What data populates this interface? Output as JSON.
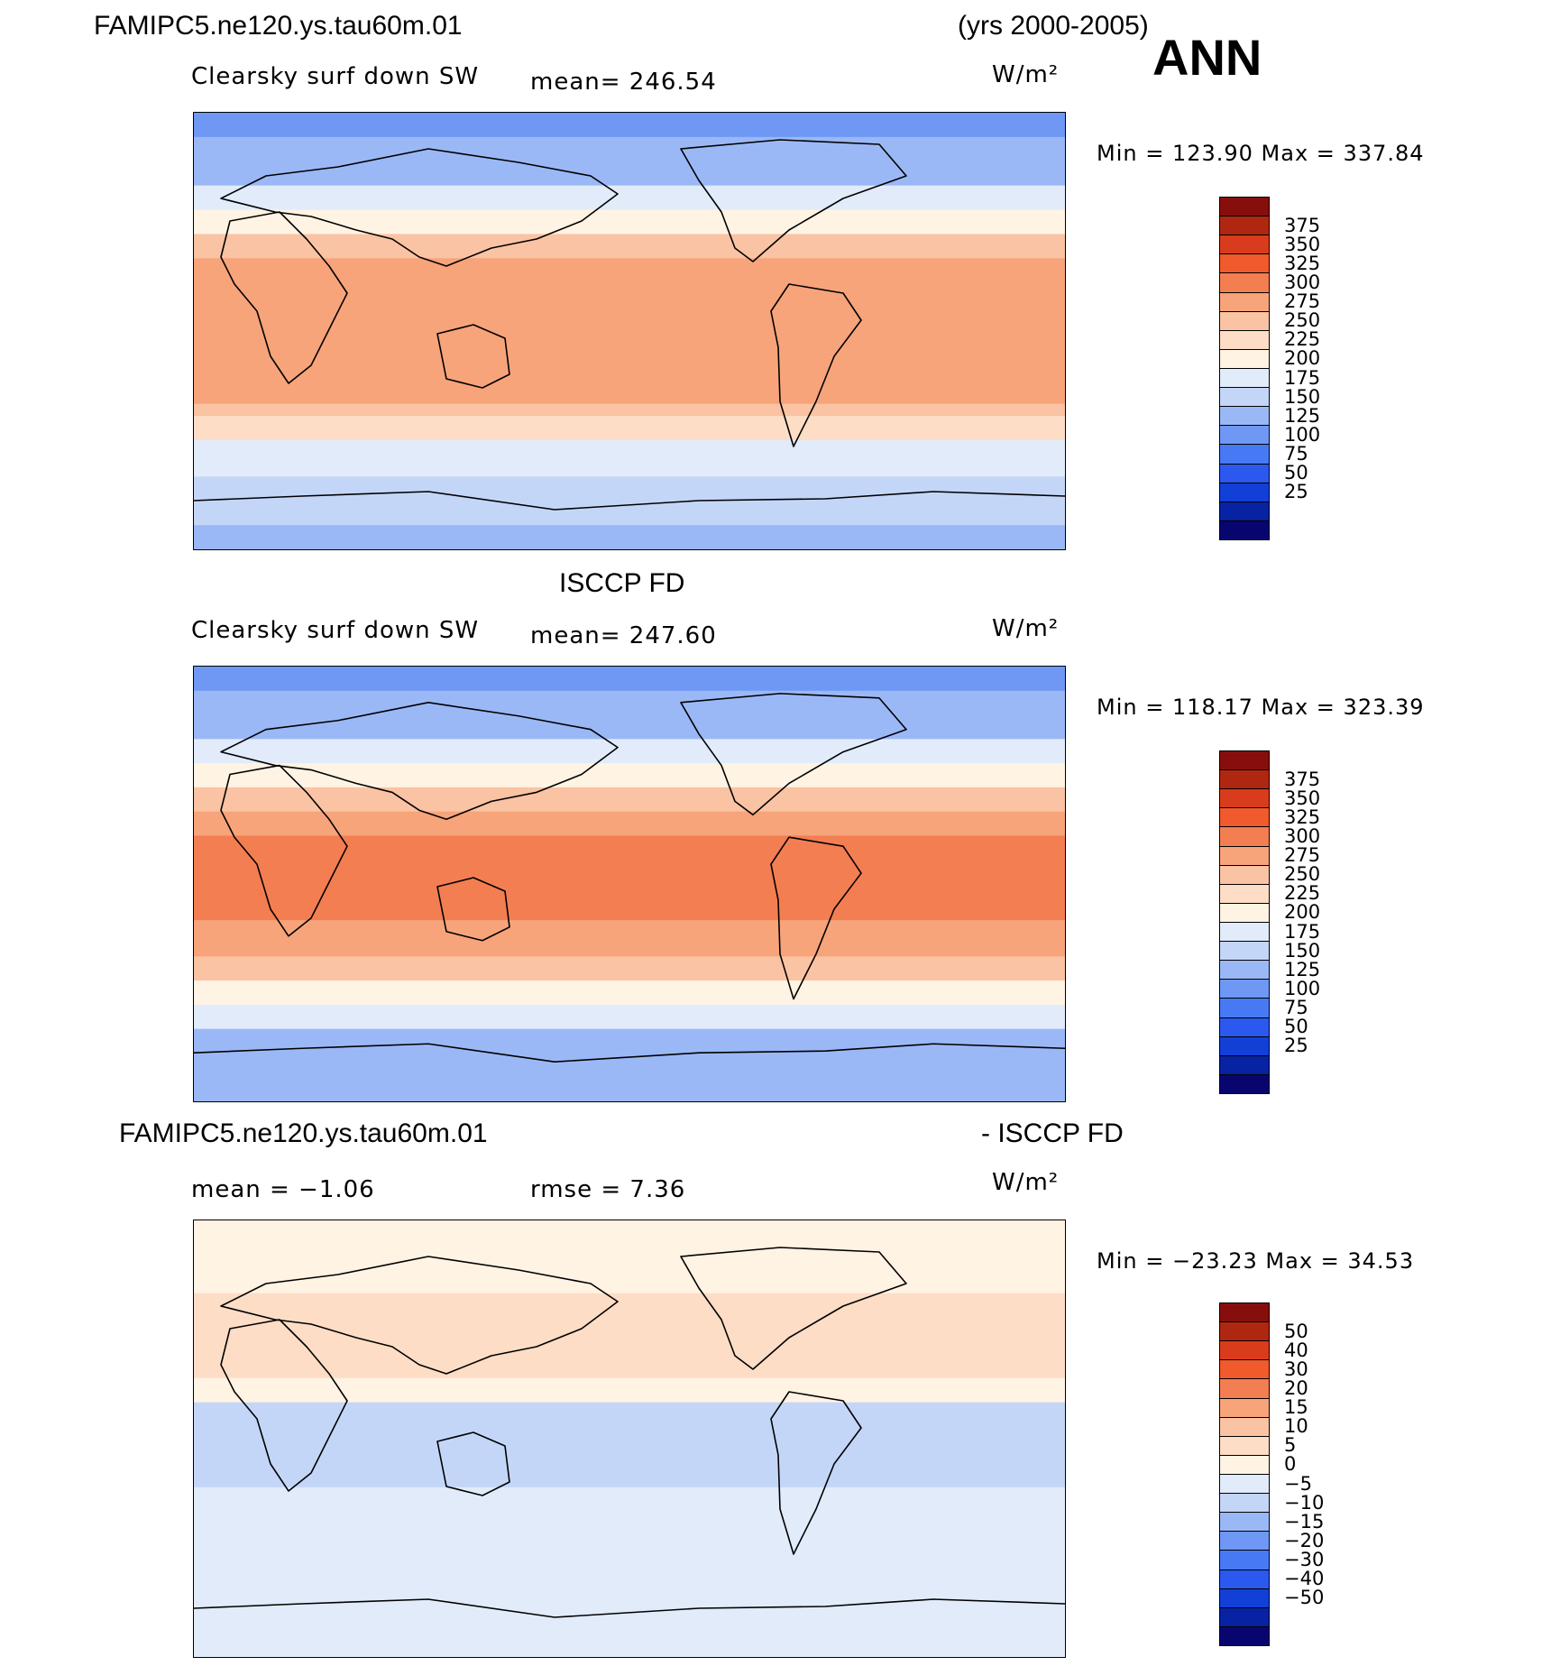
{
  "header": {
    "case_name": "FAMIPC5.ne120.ys.tau60m.01",
    "years": "(yrs 2000-2005)",
    "season": "ANN"
  },
  "panels": [
    {
      "id": "model",
      "title": "",
      "variable": "Clearsky surf down SW",
      "stat1": "mean=  246.54",
      "stat2": "",
      "units": "W/m²",
      "minmax": "Min  =  123.90  Max  =  337.84"
    },
    {
      "id": "obs",
      "title": "ISCCP FD",
      "variable": "Clearsky surf down SW",
      "stat1": "mean=  247.60",
      "stat2": "",
      "units": "W/m²",
      "minmax": "Min  =  118.17  Max  =  323.39"
    },
    {
      "id": "diff",
      "title_left": "FAMIPC5.ne120.ys.tau60m.01",
      "title_right": "- ISCCP FD",
      "variable": "mean  =   −1.06",
      "stat1": "rmse  =     7.36",
      "stat2": "",
      "units": "W/m²",
      "minmax": "Min  =  −23.23  Max  =    34.53"
    }
  ],
  "colorbars": {
    "abs": {
      "colors": [
        "#08066e",
        "#0722a3",
        "#1240d6",
        "#2b58ee",
        "#4779f4",
        "#6f98f5",
        "#9bb8f6",
        "#c4d6f8",
        "#e1ebfa",
        "#fff3e3",
        "#fdddc6",
        "#fac3a3",
        "#f7a47b",
        "#f37e51",
        "#f05a2c",
        "#d93c1c",
        "#b02711",
        "#860f0d"
      ],
      "labels": [
        "25",
        "50",
        "75",
        "100",
        "125",
        "150",
        "175",
        "200",
        "225",
        "250",
        "275",
        "300",
        "325",
        "350",
        "375"
      ]
    },
    "diff": {
      "colors": [
        "#08066e",
        "#0722a3",
        "#1240d6",
        "#2b58ee",
        "#4779f4",
        "#6f98f5",
        "#9bb8f6",
        "#c4d6f8",
        "#e1ebfa",
        "#fff3e3",
        "#fdddc6",
        "#fac3a3",
        "#f7a47b",
        "#f37e51",
        "#f05a2c",
        "#d93c1c",
        "#b02711",
        "#860f0d"
      ],
      "labels": [
        "−50",
        "−40",
        "−30",
        "−20",
        "−15",
        "−10",
        "−5",
        "0",
        "5",
        "10",
        "15",
        "20",
        "30",
        "40",
        "50"
      ]
    }
  },
  "chart_data": [
    {
      "type": "heatmap",
      "title": "Clearsky surf down SW",
      "units": "W/m²",
      "mean": 246.54,
      "min": 123.9,
      "max": 337.84,
      "contour_levels": [
        25,
        50,
        75,
        100,
        125,
        150,
        175,
        200,
        225,
        250,
        275,
        300,
        325,
        350,
        375
      ],
      "zonal_bands": [
        {
          "lat": [
            80,
            90
          ],
          "value": 105
        },
        {
          "lat": [
            60,
            80
          ],
          "value": 140
        },
        {
          "lat": [
            50,
            60
          ],
          "value": 175
        },
        {
          "lat": [
            40,
            50
          ],
          "value": 215
        },
        {
          "lat": [
            30,
            40
          ],
          "value": 250
        },
        {
          "lat": [
            -30,
            30
          ],
          "value": 290
        },
        {
          "lat": [
            -35,
            -30
          ],
          "value": 260
        },
        {
          "lat": [
            -45,
            -35
          ],
          "value": 230
        },
        {
          "lat": [
            -60,
            -45
          ],
          "value": 185
        },
        {
          "lat": [
            -80,
            -60
          ],
          "value": 150
        },
        {
          "lat": [
            -90,
            -80
          ],
          "value": 130
        }
      ]
    },
    {
      "type": "heatmap",
      "title": "ISCCP FD Clearsky surf down SW",
      "units": "W/m²",
      "mean": 247.6,
      "min": 118.17,
      "max": 323.39,
      "contour_levels": [
        25,
        50,
        75,
        100,
        125,
        150,
        175,
        200,
        225,
        250,
        275,
        300,
        325,
        350,
        375
      ],
      "zonal_bands": [
        {
          "lat": [
            80,
            90
          ],
          "value": 110
        },
        {
          "lat": [
            60,
            80
          ],
          "value": 140
        },
        {
          "lat": [
            50,
            60
          ],
          "value": 175
        },
        {
          "lat": [
            40,
            50
          ],
          "value": 210
        },
        {
          "lat": [
            30,
            40
          ],
          "value": 250
        },
        {
          "lat": [
            20,
            30
          ],
          "value": 280
        },
        {
          "lat": [
            -15,
            20
          ],
          "value": 305
        },
        {
          "lat": [
            -30,
            -15
          ],
          "value": 285
        },
        {
          "lat": [
            -40,
            -30
          ],
          "value": 255
        },
        {
          "lat": [
            -50,
            -40
          ],
          "value": 220
        },
        {
          "lat": [
            -60,
            -50
          ],
          "value": 180
        },
        {
          "lat": [
            -80,
            -60
          ],
          "value": 145
        },
        {
          "lat": [
            -90,
            -80
          ],
          "value": 130
        }
      ]
    },
    {
      "type": "heatmap",
      "title": "FAMIPC5.ne120.ys.tau60m.01 - ISCCP FD",
      "units": "W/m²",
      "mean": -1.06,
      "rmse": 7.36,
      "min": -23.23,
      "max": 34.53,
      "contour_levels": [
        -50,
        -40,
        -30,
        -20,
        -15,
        -10,
        -5,
        0,
        5,
        10,
        15,
        20,
        30,
        40,
        50
      ],
      "zonal_bands": [
        {
          "lat": [
            60,
            90
          ],
          "value": 3
        },
        {
          "lat": [
            45,
            60
          ],
          "value": 6
        },
        {
          "lat": [
            25,
            45
          ],
          "value": 8
        },
        {
          "lat": [
            15,
            25
          ],
          "value": 2
        },
        {
          "lat": [
            -20,
            15
          ],
          "value": -7
        },
        {
          "lat": [
            -60,
            -20
          ],
          "value": -3
        },
        {
          "lat": [
            -90,
            -60
          ],
          "value": -2
        }
      ]
    }
  ]
}
